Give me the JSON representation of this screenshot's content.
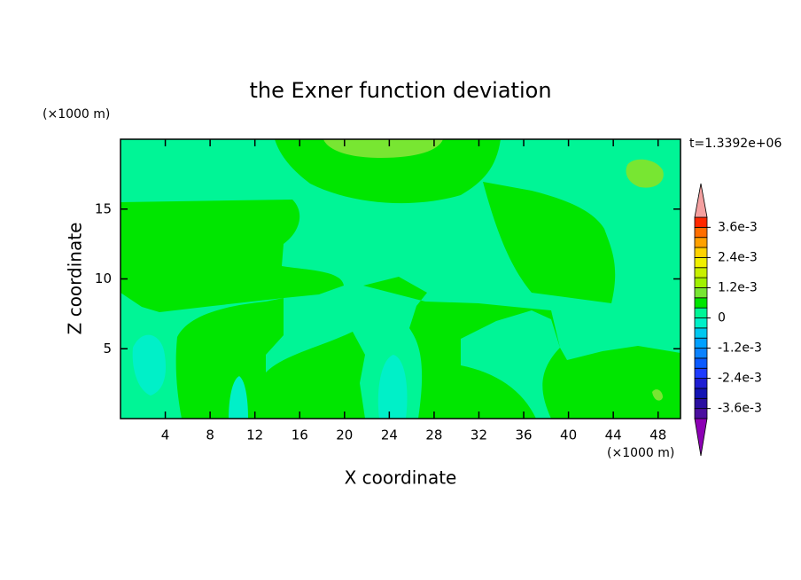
{
  "chart_data": {
    "type": "contour",
    "title": "the Exner function deviation",
    "x_label": "X coordinate",
    "y_label": "Z coordinate",
    "x_unit": "(×1000 m)",
    "y_unit": "(×1000 m)",
    "time_label": "t=1.3392e+06",
    "xlim": [
      0,
      50
    ],
    "ylim": [
      0,
      20
    ],
    "xticks": [
      4,
      8,
      12,
      16,
      20,
      24,
      28,
      32,
      36,
      40,
      44,
      48
    ],
    "yticks": [
      5,
      10,
      15
    ],
    "colorbar": {
      "lim": [
        -0.004,
        0.004
      ],
      "ticks": [
        {
          "value": 0.0036,
          "label": "3.6e-3"
        },
        {
          "value": 0.0024,
          "label": "2.4e-3"
        },
        {
          "value": 0.0012,
          "label": "1.2e-3"
        },
        0,
        {
          "value": -0.0012,
          "label": "-1.2e-3"
        },
        {
          "value": -0.0024,
          "label": "-2.4e-3"
        },
        {
          "value": -0.0036,
          "label": "-3.6e-3"
        }
      ],
      "colors": [
        "#4b0f9f",
        "#2a0fa0",
        "#1414b4",
        "#1e1ed2",
        "#1e3cff",
        "#0a5aff",
        "#0a82ff",
        "#00a0ff",
        "#00c8f0",
        "#00f0c8",
        "#00f596",
        "#00e600",
        "#78e632",
        "#a0f000",
        "#c8f000",
        "#f0f000",
        "#ffd200",
        "#ffa000",
        "#ff6e00",
        "#ff2800"
      ],
      "over_color": "#f4a0a0",
      "under_color": "#8c00b4"
    }
  }
}
